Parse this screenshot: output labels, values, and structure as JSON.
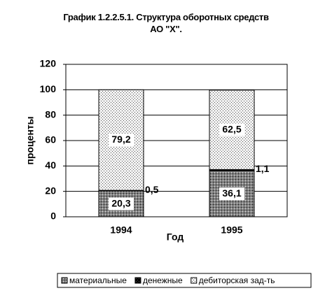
{
  "chart_data": {
    "type": "stacked_bar",
    "title": "График 1.2.2.5.1.  Структура оборотных средств АО \"Х\".",
    "x_label": "Год",
    "y_label": "проценты",
    "categories": [
      "1994",
      "1995"
    ],
    "series": [
      {
        "name": "материальные",
        "color": "#808080",
        "values": [
          20.3,
          36.1
        ],
        "value_labels": [
          "20,3",
          "36,1"
        ]
      },
      {
        "name": "денежные",
        "color": "#000000",
        "values": [
          0.5,
          1.1
        ],
        "value_labels": [
          "0,5",
          "1,1"
        ]
      },
      {
        "name": "дебиторская зад-ть",
        "color": "#f2f2f2",
        "values": [
          79.2,
          62.5
        ],
        "value_labels": [
          "79,2",
          "62,5"
        ]
      }
    ],
    "ylim": [
      0,
      120
    ],
    "yticks": [
      0,
      20,
      40,
      60,
      80,
      100,
      120
    ],
    "grid": true
  }
}
